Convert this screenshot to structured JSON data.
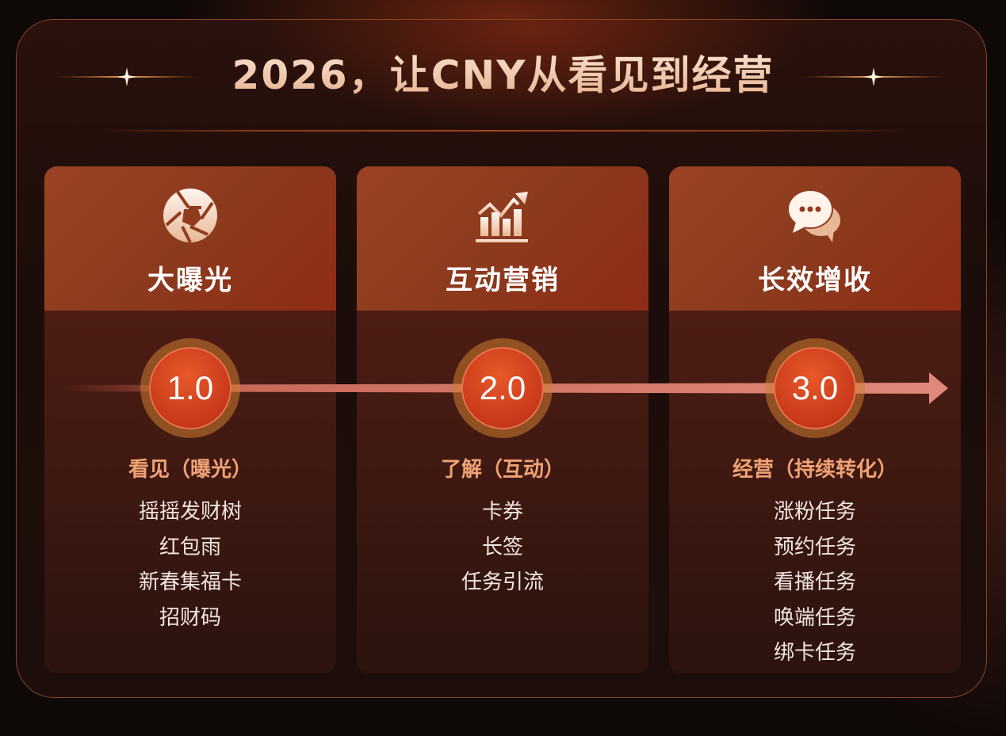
{
  "title": "2026，让CNY从看见到经营",
  "colors": {
    "accent": "#d8431e",
    "card_header": "#93401f",
    "subtitle": "#f0a274",
    "arrow": "#e0897a"
  },
  "stages": [
    {
      "icon": "camera-aperture-icon",
      "title": "大曝光",
      "version": "1.0",
      "subtitle": "看见（曝光）",
      "items": [
        "摇摇发财树",
        "红包雨",
        "新春集福卡",
        "招财码"
      ]
    },
    {
      "icon": "rising-chart-icon",
      "title": "互动营销",
      "version": "2.0",
      "subtitle": "了解（互动）",
      "items": [
        "卡券",
        "长签",
        "任务引流"
      ]
    },
    {
      "icon": "chat-bubbles-icon",
      "title": "长效增收",
      "version": "3.0",
      "subtitle": "经营（持续转化）",
      "items": [
        "涨粉任务",
        "预约任务",
        "看播任务",
        "唤端任务",
        "绑卡任务"
      ]
    }
  ]
}
